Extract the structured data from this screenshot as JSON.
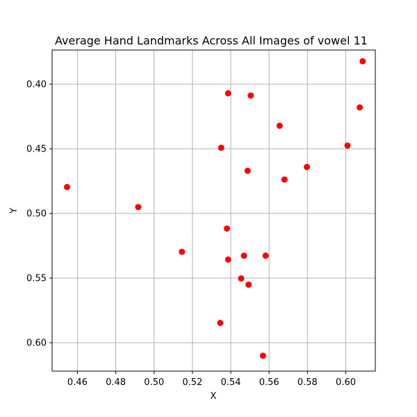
{
  "chart_data": {
    "type": "scatter",
    "title": "Average Hand Landmarks Across All Images of vowel 11",
    "xlabel": "X",
    "ylabel": "Y",
    "xlim": [
      0.4468,
      0.6154
    ],
    "ylim": [
      0.622,
      0.3736
    ],
    "y_inverted": true,
    "grid": true,
    "x_ticks": [
      0.46,
      0.48,
      0.5,
      0.52,
      0.54,
      0.56,
      0.58,
      0.6
    ],
    "x_tick_labels": [
      "0.46",
      "0.48",
      "0.50",
      "0.52",
      "0.54",
      "0.56",
      "0.58",
      "0.60"
    ],
    "y_ticks": [
      0.4,
      0.45,
      0.5,
      0.55,
      0.6
    ],
    "y_tick_labels": [
      "0.40",
      "0.45",
      "0.50",
      "0.55",
      "0.60"
    ],
    "marker_color": "#ff0000",
    "points": [
      {
        "x": 0.6088,
        "y": 0.3823
      },
      {
        "x": 0.5386,
        "y": 0.4071
      },
      {
        "x": 0.5504,
        "y": 0.4088
      },
      {
        "x": 0.6073,
        "y": 0.418
      },
      {
        "x": 0.5655,
        "y": 0.4322
      },
      {
        "x": 0.535,
        "y": 0.4492
      },
      {
        "x": 0.6009,
        "y": 0.4475
      },
      {
        "x": 0.5797,
        "y": 0.4641
      },
      {
        "x": 0.5488,
        "y": 0.467
      },
      {
        "x": 0.568,
        "y": 0.4738
      },
      {
        "x": 0.4546,
        "y": 0.4796
      },
      {
        "x": 0.4917,
        "y": 0.4951
      },
      {
        "x": 0.538,
        "y": 0.5117
      },
      {
        "x": 0.5145,
        "y": 0.5297
      },
      {
        "x": 0.5469,
        "y": 0.5327
      },
      {
        "x": 0.5582,
        "y": 0.5327
      },
      {
        "x": 0.5386,
        "y": 0.5357
      },
      {
        "x": 0.5454,
        "y": 0.5503
      },
      {
        "x": 0.5493,
        "y": 0.5551
      },
      {
        "x": 0.5345,
        "y": 0.5847
      },
      {
        "x": 0.5568,
        "y": 0.6101
      }
    ]
  }
}
